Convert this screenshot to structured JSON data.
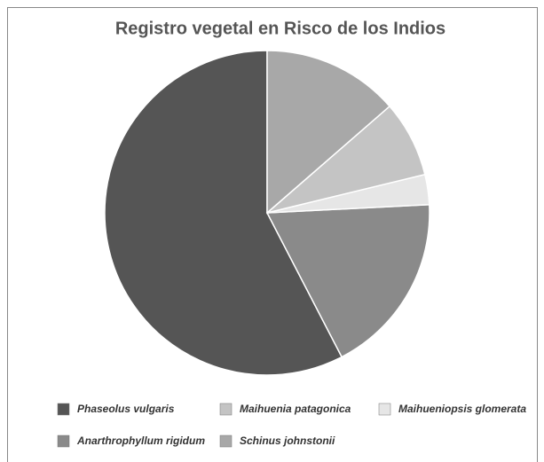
{
  "chart_data": {
    "type": "pie",
    "title": "Registro vegetal en Risco de los Indios",
    "categories": [
      "Phaseolus vulgaris",
      "Anarthrophyllum rigidum",
      "Maihueniopsis glomerata",
      "Maihuenia patagonica",
      "Schinus johnstonii"
    ],
    "values": [
      57.6,
      18.2,
      3,
      7.6,
      13.6
    ],
    "colors": [
      "#555555",
      "#8a8a8a",
      "#e6e6e6",
      "#c4c4c4",
      "#a8a8a8"
    ],
    "legend": "bottom"
  }
}
